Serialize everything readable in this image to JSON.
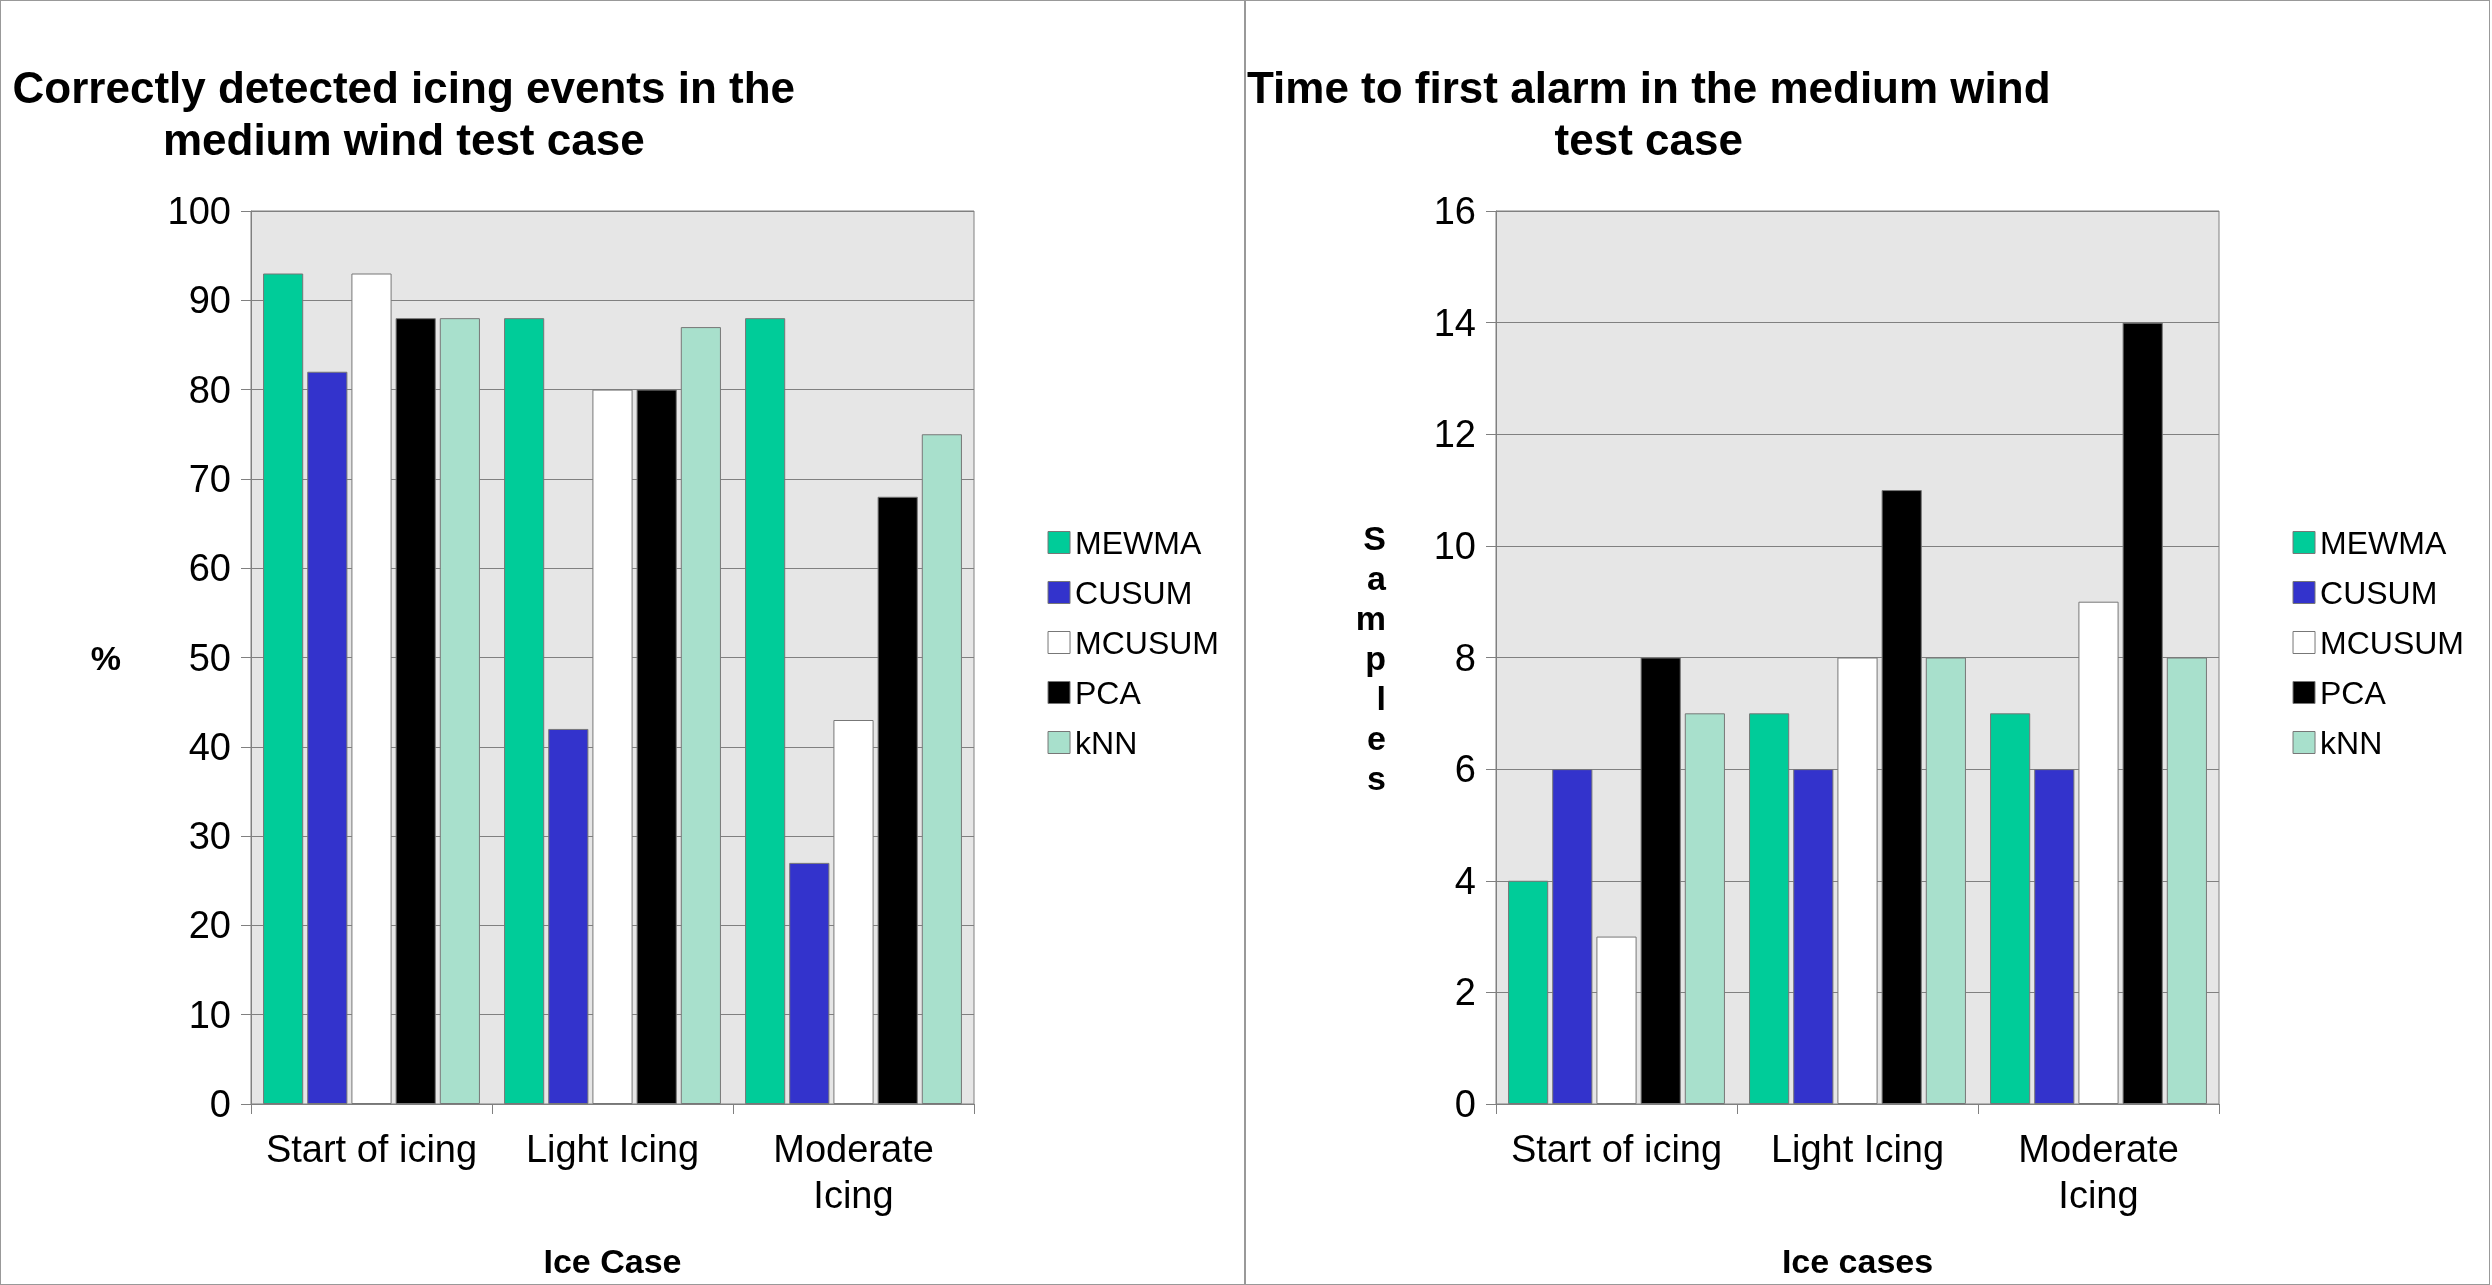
{
  "chart_data": [
    {
      "type": "bar",
      "title": "Correctly detected icing events in the\nmedium wind test case",
      "xlabel": "Ice Case",
      "ylabel": "%",
      "categories": [
        "Start of icing",
        "Light Icing",
        "Moderate\nIcing"
      ],
      "series": [
        {
          "name": "MEWMA",
          "color": "#00cc99",
          "values": [
            93,
            88,
            88
          ]
        },
        {
          "name": "CUSUM",
          "color": "#3333cc",
          "values": [
            82,
            42,
            27
          ]
        },
        {
          "name": "MCUSUM",
          "color": "#ffffff",
          "values": [
            93,
            80,
            43
          ]
        },
        {
          "name": "PCA",
          "color": "#000000",
          "values": [
            88,
            80,
            68
          ]
        },
        {
          "name": "kNN",
          "color": "#a8e0cc",
          "values": [
            88,
            87,
            75
          ]
        }
      ],
      "ylim": [
        0,
        100
      ],
      "yticks": [
        0,
        10,
        20,
        30,
        40,
        50,
        60,
        70,
        80,
        90,
        100
      ],
      "grid": "y",
      "legend": "right"
    },
    {
      "type": "bar",
      "title": "Time to first alarm in the medium wind\ntest case",
      "xlabel": "Ice cases",
      "ylabel": "Samples",
      "categories": [
        "Start of icing",
        "Light Icing",
        "Moderate\nIcing"
      ],
      "series": [
        {
          "name": "MEWMA",
          "color": "#00cc99",
          "values": [
            4,
            7,
            7
          ]
        },
        {
          "name": "CUSUM",
          "color": "#3333cc",
          "values": [
            6,
            6,
            6
          ]
        },
        {
          "name": "MCUSUM",
          "color": "#ffffff",
          "values": [
            3,
            8,
            9
          ]
        },
        {
          "name": "PCA",
          "color": "#000000",
          "values": [
            8,
            11,
            14
          ]
        },
        {
          "name": "kNN",
          "color": "#a8e0cc",
          "values": [
            7,
            8,
            8
          ]
        }
      ],
      "ylim": [
        0,
        16
      ],
      "yticks": [
        0,
        2,
        4,
        6,
        8,
        10,
        12,
        14,
        16
      ],
      "grid": "y",
      "legend": "right"
    }
  ]
}
